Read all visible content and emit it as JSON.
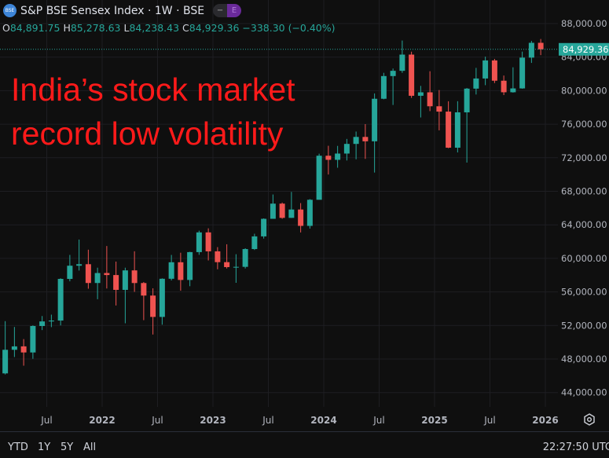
{
  "header": {
    "logo_text": "BSE",
    "title": "S&P BSE Sensex Index · 1W · BSE",
    "pill_left": "−",
    "pill_right": "E",
    "o_label": "O",
    "o_value": "84,891.75",
    "h_label": "H",
    "h_value": "85,278.63",
    "l_label": "L",
    "l_value": "84,238.43",
    "c_label": "C",
    "c_value": "84,929.36",
    "change": "−338.30 (−0.40%)"
  },
  "overlay": {
    "line1": "India’s stock market",
    "line2": "record low volatility"
  },
  "colors": {
    "up": "#26a69a",
    "down": "#ef5350",
    "background": "#0f0f0f",
    "grid": "#1e1e22",
    "overlay_text": "#ff1a1a",
    "last_price": "#26a69a"
  },
  "bottom": {
    "ranges": [
      "YTD",
      "1Y",
      "5Y",
      "All"
    ],
    "clock": "22:27:50 UTC",
    "settings_icon": "gear-icon"
  },
  "chart_data": {
    "type": "candlestick",
    "title": "",
    "ylim": [
      42000,
      90000
    ],
    "xlim": [
      "2021-02",
      "2026-01"
    ],
    "grid": true,
    "y_ticks": [
      44000,
      48000,
      52000,
      56000,
      60000,
      64000,
      68000,
      72000,
      76000,
      80000,
      84000,
      88000
    ],
    "y_tick_labels": [
      "44,000.00",
      "48,000.00",
      "52,000.00",
      "56,000.00",
      "60,000.00",
      "64,000.00",
      "68,000.00",
      "72,000.00",
      "76,000.00",
      "80,000.00",
      "84,000.00",
      "88,000.00"
    ],
    "x_ticks": [
      {
        "label": "Jul",
        "date": "2021-07"
      },
      {
        "label": "2022",
        "date": "2022-01"
      },
      {
        "label": "Jul",
        "date": "2022-07"
      },
      {
        "label": "2023",
        "date": "2023-01"
      },
      {
        "label": "Jul",
        "date": "2023-07"
      },
      {
        "label": "2024",
        "date": "2024-01"
      },
      {
        "label": "Jul",
        "date": "2024-07"
      },
      {
        "label": "2025",
        "date": "2025-01"
      },
      {
        "label": "Jul",
        "date": "2025-07"
      },
      {
        "label": "2026",
        "date": "2026-01"
      }
    ],
    "last_price": 84929.36,
    "last_price_label": "84,929.36",
    "candles": [
      [
        "2021-02",
        46286,
        52516,
        46160,
        49100
      ],
      [
        "2021-03",
        49100,
        51822,
        48236,
        49509
      ],
      [
        "2021-04",
        49509,
        50375,
        47204,
        48782
      ],
      [
        "2021-05",
        48782,
        52013,
        48028,
        51937
      ],
      [
        "2021-06",
        51937,
        53126,
        51450,
        52483
      ],
      [
        "2021-07",
        52483,
        53290,
        51802,
        52587
      ],
      [
        "2021-08",
        52587,
        57625,
        52009,
        57553
      ],
      [
        "2021-09",
        57553,
        60412,
        57263,
        59126
      ],
      [
        "2021-10",
        59126,
        62245,
        58551,
        59307
      ],
      [
        "2021-11",
        59307,
        61036,
        56383,
        57065
      ],
      [
        "2021-12",
        57065,
        58891,
        55132,
        58254
      ],
      [
        "2022-01",
        58254,
        61475,
        56409,
        58014
      ],
      [
        "2022-02",
        58014,
        59618,
        54383,
        56247
      ],
      [
        "2022-03",
        56247,
        58890,
        52260,
        58569
      ],
      [
        "2022-04",
        58569,
        60845,
        56009,
        57061
      ],
      [
        "2022-05",
        57061,
        57184,
        52632,
        55566
      ],
      [
        "2022-06",
        55566,
        56433,
        50921,
        53019
      ],
      [
        "2022-07",
        53019,
        57619,
        52094,
        57570
      ],
      [
        "2022-08",
        57570,
        60411,
        57367,
        59537
      ],
      [
        "2022-09",
        59537,
        60676,
        56147,
        57427
      ],
      [
        "2022-10",
        57427,
        60786,
        56683,
        60747
      ],
      [
        "2022-11",
        60747,
        63303,
        60425,
        63100
      ],
      [
        "2022-12",
        63100,
        63583,
        59754,
        60841
      ],
      [
        "2023-01",
        60841,
        61343,
        58699,
        59550
      ],
      [
        "2023-02",
        59550,
        61682,
        58795,
        58962
      ],
      [
        "2023-03",
        58962,
        60498,
        57085,
        58992
      ],
      [
        "2023-04",
        58992,
        61209,
        58793,
        61112
      ],
      [
        "2023-05",
        61112,
        62936,
        61002,
        62622
      ],
      [
        "2023-06",
        62622,
        64768,
        62359,
        64719
      ],
      [
        "2023-07",
        64719,
        67619,
        64836,
        66528
      ],
      [
        "2023-08",
        66528,
        66658,
        64723,
        64831
      ],
      [
        "2023-09",
        64831,
        67927,
        64818,
        65828
      ],
      [
        "2023-10",
        65828,
        66593,
        63092,
        63875
      ],
      [
        "2023-11",
        63875,
        67069,
        63550,
        66988
      ],
      [
        "2023-12",
        66988,
        72484,
        67150,
        72240
      ],
      [
        "2024-01",
        72240,
        73428,
        70001,
        71752
      ],
      [
        "2024-02",
        71752,
        73413,
        70810,
        72500
      ],
      [
        "2024-03",
        72500,
        74245,
        71674,
        73651
      ],
      [
        "2024-04",
        73651,
        75124,
        71816,
        74483
      ],
      [
        "2024-05",
        74483,
        76009,
        71866,
        73961
      ],
      [
        "2024-06",
        73961,
        79671,
        70234,
        79033
      ],
      [
        "2024-07",
        79033,
        82129,
        78971,
        81741
      ],
      [
        "2024-08",
        81741,
        82637,
        78295,
        82366
      ],
      [
        "2024-09",
        82366,
        85978,
        82126,
        84300
      ],
      [
        "2024-10",
        84300,
        84648,
        79137,
        79389
      ],
      [
        "2024-11",
        79389,
        80569,
        76802,
        79803
      ],
      [
        "2024-12",
        79803,
        82317,
        77560,
        78139
      ],
      [
        "2025-01",
        78139,
        80072,
        75267,
        77501
      ],
      [
        "2025-02",
        77501,
        78735,
        73141,
        73198
      ],
      [
        "2025-03",
        73198,
        78741,
        72633,
        77415
      ],
      [
        "2025-04",
        77415,
        80321,
        71425,
        80242
      ],
      [
        "2025-05",
        80242,
        82718,
        79542,
        81451
      ],
      [
        "2025-06",
        81451,
        84058,
        80654,
        83606
      ],
      [
        "2025-07",
        83606,
        83789,
        80906,
        81186
      ],
      [
        "2025-08",
        81186,
        81803,
        79472,
        79810
      ],
      [
        "2025-09",
        79810,
        82785,
        79764,
        80268
      ],
      [
        "2025-10",
        80268,
        84656,
        80230,
        83939
      ],
      [
        "2025-11",
        83939,
        85937,
        83309,
        85706
      ],
      [
        "2025-12",
        85706,
        86159,
        84238,
        84929
      ]
    ]
  }
}
